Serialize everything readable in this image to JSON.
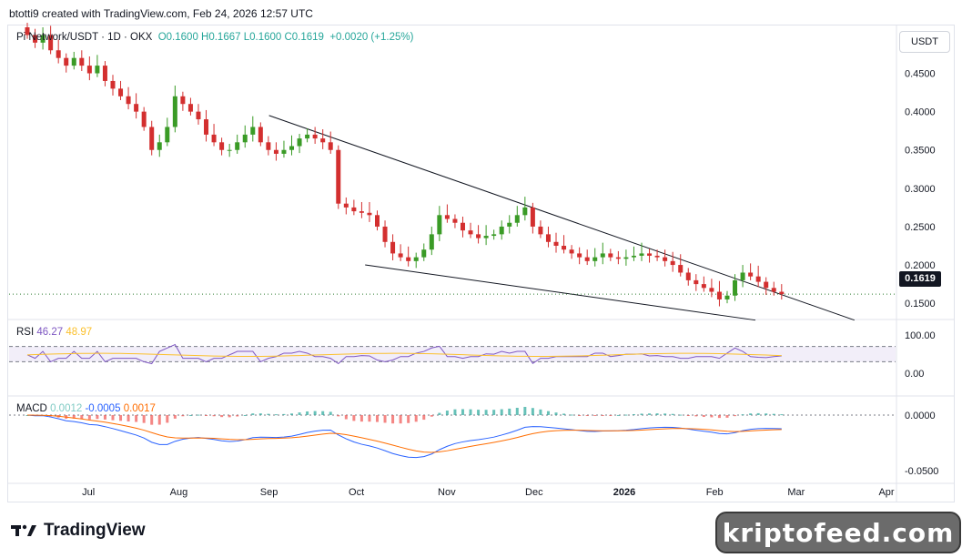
{
  "header": {
    "attribution": "btotti9 created with TradingView.com, Feb 24, 2026 12:57 UTC"
  },
  "legend": {
    "symbol": "Pi Network/USDT · 1D · OKX",
    "values": "O0.1600 H0.1667 L0.1600 C0.1619",
    "change": "+0.0020 (+1.25%)"
  },
  "unit_button": "USDT",
  "price_tag": "0.1619",
  "rsi": {
    "label": "RSI",
    "value1": "46.27",
    "value2": "48.97",
    "color1": "#7e57c2",
    "color2": "#fbc02d"
  },
  "macd": {
    "label": "MACD",
    "value1": "0.0012",
    "value2": "-0.0005",
    "value3": "0.0017",
    "color1": "#2962ff",
    "color2": "#ff6d00"
  },
  "footer": {
    "brand": "TradingView",
    "watermark": "kriptofeed.com"
  },
  "colors": {
    "up": "#26a69a",
    "down": "#ef5350",
    "candle_up": "#3a9b26",
    "candle_down": "#d32f2f"
  },
  "chart_data": {
    "type": "candlestick",
    "symbol": "Pi Network/USDT",
    "timeframe": "1D",
    "exchange": "OKX",
    "price_axis": {
      "ticks": [
        "0.1500",
        "0.2000",
        "0.2500",
        "0.3000",
        "0.3500",
        "0.4000",
        "0.4500"
      ],
      "range": [
        0.13,
        0.51
      ]
    },
    "x_ticks": [
      "Jul",
      "Aug",
      "Sep",
      "Oct",
      "Nov",
      "Dec",
      "2026",
      "Feb",
      "Mar",
      "Apr"
    ],
    "last_close": 0.1619,
    "close_series": [
      0.5,
      0.49,
      0.5,
      0.48,
      0.47,
      0.46,
      0.47,
      0.46,
      0.45,
      0.46,
      0.44,
      0.43,
      0.42,
      0.41,
      0.4,
      0.38,
      0.35,
      0.36,
      0.38,
      0.42,
      0.41,
      0.4,
      0.39,
      0.37,
      0.36,
      0.35,
      0.35,
      0.36,
      0.37,
      0.38,
      0.36,
      0.35,
      0.345,
      0.35,
      0.355,
      0.365,
      0.37,
      0.365,
      0.36,
      0.35,
      0.28,
      0.275,
      0.27,
      0.268,
      0.265,
      0.25,
      0.23,
      0.215,
      0.21,
      0.205,
      0.21,
      0.22,
      0.24,
      0.265,
      0.26,
      0.255,
      0.245,
      0.24,
      0.235,
      0.238,
      0.24,
      0.25,
      0.255,
      0.265,
      0.275,
      0.25,
      0.24,
      0.23,
      0.225,
      0.22,
      0.215,
      0.21,
      0.205,
      0.21,
      0.215,
      0.21,
      0.208,
      0.21,
      0.212,
      0.215,
      0.212,
      0.21,
      0.205,
      0.2,
      0.19,
      0.18,
      0.175,
      0.17,
      0.165,
      0.155,
      0.16,
      0.18,
      0.19,
      0.185,
      0.178,
      0.17,
      0.165,
      0.1619
    ],
    "trendlines": [
      {
        "name": "upper",
        "from": {
          "date": "2025-09-01",
          "price": 0.395
        },
        "to": {
          "date": "2026-03-21",
          "price": 0.128
        }
      },
      {
        "name": "lower",
        "from": {
          "date": "2025-10-04",
          "price": 0.2
        },
        "to": {
          "date": "2026-02-15",
          "price": 0.128
        }
      }
    ],
    "rsi": {
      "ticks": [
        "100.00",
        "0.00"
      ],
      "band": [
        30,
        70
      ]
    },
    "macd": {
      "ticks": [
        "0.0000",
        "-0.0500"
      ]
    }
  }
}
